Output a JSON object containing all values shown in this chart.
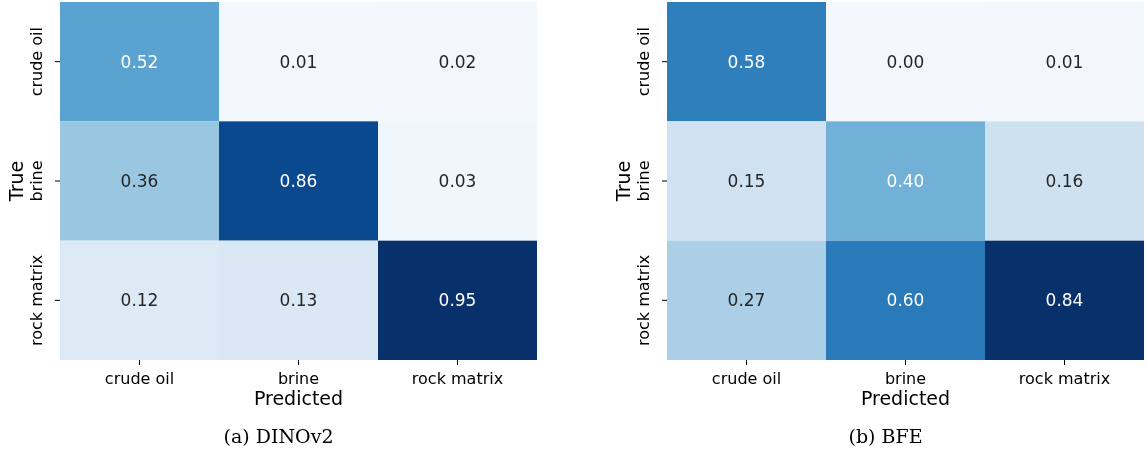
{
  "chart_data": [
    {
      "type": "heatmap",
      "title": "(a) DINOv2",
      "xlabel": "Predicted",
      "ylabel": "True",
      "categories": [
        "crude oil",
        "brine",
        "rock matrix"
      ],
      "y_categories": [
        "crude oil",
        "brine",
        "rock matrix"
      ],
      "cells": [
        [
          0.52,
          0.01,
          0.02
        ],
        [
          0.36,
          0.86,
          0.03
        ],
        [
          0.12,
          0.13,
          0.95
        ]
      ],
      "cell_labels": [
        [
          "0.52",
          "0.01",
          "0.02"
        ],
        [
          "0.36",
          "0.86",
          "0.03"
        ],
        [
          "0.12",
          "0.13",
          "0.95"
        ]
      ]
    },
    {
      "type": "heatmap",
      "title": "(b) BFE",
      "xlabel": "Predicted",
      "ylabel": "True",
      "categories": [
        "crude oil",
        "brine",
        "rock matrix"
      ],
      "y_categories": [
        "crude oil",
        "brine",
        "rock matrix"
      ],
      "cells": [
        [
          0.58,
          0.0,
          0.01
        ],
        [
          0.15,
          0.4,
          0.16
        ],
        [
          0.27,
          0.6,
          0.84
        ]
      ],
      "cell_labels": [
        [
          "0.58",
          "0.00",
          "0.01"
        ],
        [
          "0.15",
          "0.40",
          "0.16"
        ],
        [
          "0.27",
          "0.60",
          "0.84"
        ]
      ]
    }
  ]
}
